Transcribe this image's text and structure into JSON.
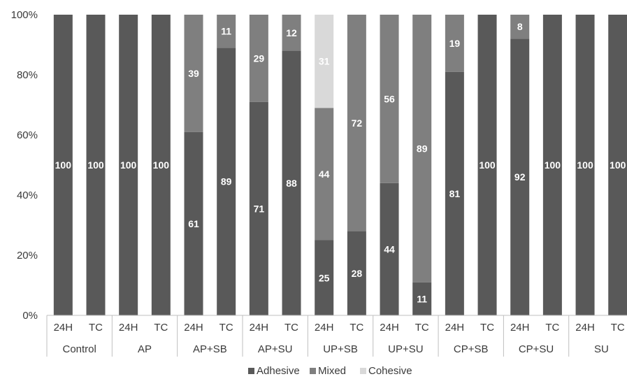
{
  "chart_data": {
    "type": "bar",
    "stacked": true,
    "percent_stacked": true,
    "x": [
      {
        "group": "Control",
        "sub": "24H"
      },
      {
        "group": "Control",
        "sub": "TC"
      },
      {
        "group": "AP",
        "sub": "24H"
      },
      {
        "group": "AP",
        "sub": "TC"
      },
      {
        "group": "AP+SB",
        "sub": "24H"
      },
      {
        "group": "AP+SB",
        "sub": "TC"
      },
      {
        "group": "AP+SU",
        "sub": "24H"
      },
      {
        "group": "AP+SU",
        "sub": "TC"
      },
      {
        "group": "UP+SB",
        "sub": "24H"
      },
      {
        "group": "UP+SB",
        "sub": "TC"
      },
      {
        "group": "UP+SU",
        "sub": "24H"
      },
      {
        "group": "UP+SU",
        "sub": "TC"
      },
      {
        "group": "CP+SB",
        "sub": "24H"
      },
      {
        "group": "CP+SB",
        "sub": "TC"
      },
      {
        "group": "CP+SU",
        "sub": "24H"
      },
      {
        "group": "CP+SU",
        "sub": "TC"
      },
      {
        "group": "SU",
        "sub": "24H"
      },
      {
        "group": "SU",
        "sub": "TC"
      }
    ],
    "groups": [
      "Control",
      "AP",
      "AP+SB",
      "AP+SU",
      "UP+SB",
      "UP+SU",
      "CP+SB",
      "CP+SU",
      "SU"
    ],
    "series": [
      {
        "name": "Adhesive",
        "color": "#595959",
        "values": [
          100,
          100,
          100,
          100,
          61,
          89,
          71,
          88,
          25,
          28,
          44,
          11,
          81,
          100,
          92,
          100,
          100,
          100
        ]
      },
      {
        "name": "Mixed",
        "color": "#7f7f7f",
        "values": [
          0,
          0,
          0,
          0,
          39,
          11,
          29,
          12,
          44,
          72,
          56,
          89,
          19,
          0,
          8,
          0,
          0,
          0
        ]
      },
      {
        "name": "Cohesive",
        "color": "#d9d9d9",
        "values": [
          0,
          0,
          0,
          0,
          0,
          0,
          0,
          0,
          31,
          0,
          0,
          0,
          0,
          0,
          0,
          0,
          0,
          0
        ]
      }
    ],
    "y_ticks": [
      "0%",
      "20%",
      "40%",
      "60%",
      "80%",
      "100%"
    ],
    "ylim": [
      0,
      100
    ],
    "grid": false,
    "legend_position": "bottom"
  }
}
